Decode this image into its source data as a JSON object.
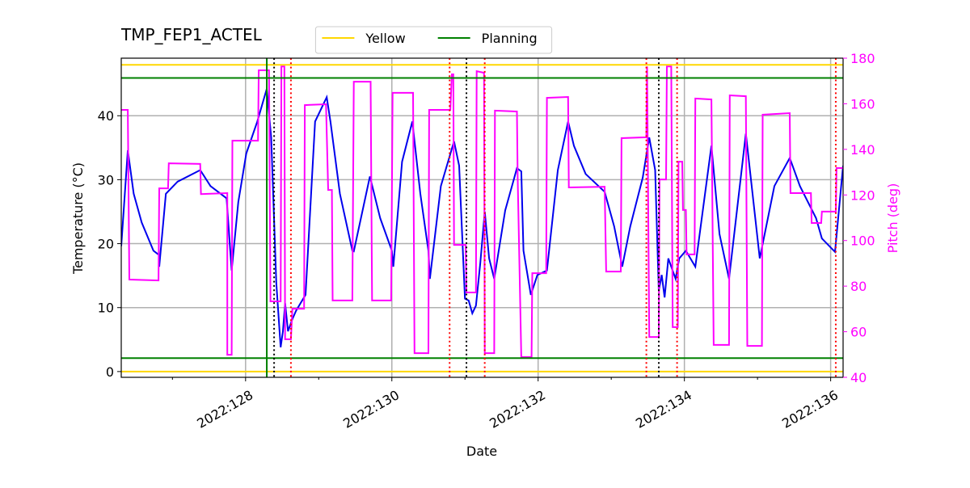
{
  "chart_data": {
    "type": "line",
    "title": "TMP_FEP1_ACTEL",
    "x_label": "Date",
    "y_label": "Temperature (°C)",
    "y2_label": "Pitch (deg)",
    "y2_color": "#ff00ff",
    "xlim": [
      126.3,
      136.17
    ],
    "ylim": [
      -0.9,
      49
    ],
    "y2lim": [
      40,
      180
    ],
    "xticks": [
      {
        "value": 128,
        "label": "2022:128"
      },
      {
        "value": 130,
        "label": "2022:130"
      },
      {
        "value": 132,
        "label": "2022:132"
      },
      {
        "value": 134,
        "label": "2022:134"
      },
      {
        "value": 136,
        "label": "2022:136"
      }
    ],
    "xminorticks": [
      127,
      129,
      131,
      133,
      135
    ],
    "yticks": [
      0,
      10,
      20,
      30,
      40
    ],
    "y2ticks": [
      40,
      60,
      80,
      100,
      120,
      140,
      160,
      180
    ],
    "grid": true,
    "legend": "upper center",
    "series": [
      {
        "color": "#0000ee",
        "x": [
          126.3,
          126.39,
          126.47,
          126.58,
          126.74,
          126.82,
          126.82,
          126.91,
          127.07,
          127.38,
          127.52,
          127.74,
          127.81,
          127.9,
          128.01,
          128.16,
          128.29,
          128.35,
          128.42,
          128.48,
          128.51,
          128.54,
          128.58,
          128.64,
          128.69,
          128.82,
          128.95,
          129.11,
          129.16,
          129.29,
          129.46,
          129.48,
          129.7,
          129.84,
          130.0,
          130.02,
          130.14,
          130.28,
          130.39,
          130.5,
          130.52,
          130.67,
          130.85,
          130.92,
          131.0,
          131.05,
          131.1,
          131.15,
          131.21,
          131.27,
          131.33,
          131.4,
          131.55,
          131.71,
          131.77,
          131.8,
          131.9,
          131.99,
          132.12,
          132.27,
          132.41,
          132.49,
          132.65,
          132.91,
          133.04,
          133.15,
          133.26,
          133.43,
          133.52,
          133.6,
          133.65,
          133.69,
          133.73,
          133.78,
          133.82,
          133.88,
          133.93,
          134.02,
          134.15,
          134.37,
          134.48,
          134.61,
          134.84,
          135.03,
          135.23,
          135.44,
          135.58,
          135.8,
          135.88,
          136.06,
          136.17
        ],
        "values": [
          19.6,
          34.6,
          27.8,
          23.3,
          18.9,
          18.2,
          16.4,
          27.8,
          29.7,
          31.5,
          29.0,
          27.1,
          15.8,
          26.5,
          34.1,
          39.1,
          44.2,
          36.6,
          13.9,
          3.8,
          6.3,
          10.7,
          6.3,
          8.2,
          9.5,
          12.0,
          39.1,
          42.9,
          39.1,
          27.8,
          18.9,
          18.8,
          30.5,
          24.0,
          18.9,
          16.4,
          32.8,
          39.1,
          27.8,
          18.9,
          14.5,
          29.0,
          36.0,
          32.2,
          11.4,
          11.1,
          9.1,
          10.3,
          17.0,
          25.0,
          17.7,
          14.5,
          25.2,
          31.8,
          31.3,
          18.9,
          12.0,
          15.1,
          15.8,
          31.5,
          39.1,
          35.3,
          30.9,
          28.1,
          22.7,
          16.4,
          22.7,
          30.3,
          36.6,
          31.5,
          12.6,
          15.1,
          11.6,
          17.7,
          16.4,
          14.5,
          17.7,
          18.9,
          16.4,
          35.3,
          21.5,
          14.5,
          37.2,
          17.7,
          29.0,
          33.4,
          29.0,
          24.0,
          20.8,
          18.7,
          32.2
        ]
      },
      {
        "color": "#ff00ff",
        "axis": "y2",
        "x": [
          126.3,
          126.39,
          126.41,
          126.81,
          126.82,
          126.94,
          126.95,
          127.38,
          127.39,
          127.75,
          127.75,
          127.81,
          127.82,
          128.17,
          128.18,
          128.32,
          128.34,
          128.48,
          128.49,
          128.53,
          128.54,
          128.62,
          128.64,
          128.8,
          128.81,
          129.1,
          129.13,
          129.18,
          129.19,
          129.46,
          129.48,
          129.71,
          129.73,
          129.99,
          130.01,
          130.29,
          130.31,
          130.5,
          130.51,
          130.8,
          130.82,
          130.84,
          130.85,
          131.01,
          131.02,
          131.15,
          131.16,
          131.26,
          131.27,
          131.4,
          131.41,
          131.71,
          131.72,
          131.77,
          131.91,
          131.92,
          132.11,
          132.12,
          132.41,
          132.42,
          132.91,
          132.93,
          133.13,
          133.14,
          133.48,
          133.49,
          133.52,
          133.65,
          133.66,
          133.75,
          133.76,
          133.82,
          133.84,
          133.91,
          133.92,
          133.97,
          133.98,
          134.02,
          134.03,
          134.14,
          134.15,
          134.37,
          134.4,
          134.61,
          134.62,
          134.84,
          134.86,
          135.06,
          135.07,
          135.44,
          135.45,
          135.73,
          135.74,
          135.87,
          135.88,
          136.07,
          136.08,
          136.17
        ],
        "values": [
          157.3,
          157.3,
          82.9,
          82.5,
          122.9,
          122.9,
          133.9,
          133.6,
          120.4,
          120.8,
          49.9,
          49.9,
          143.8,
          143.8,
          174.7,
          174.7,
          73.3,
          73.3,
          176.4,
          176.4,
          56.7,
          56.7,
          70.1,
          70.1,
          159.4,
          159.8,
          122.2,
          122.2,
          73.7,
          73.7,
          169.7,
          169.7,
          73.7,
          73.7,
          164.8,
          164.8,
          50.6,
          50.6,
          157.3,
          157.3,
          172.9,
          172.9,
          98.1,
          98.1,
          77.2,
          77.2,
          174.3,
          173.6,
          50.6,
          50.6,
          157.0,
          156.6,
          128.2,
          48.9,
          48.9,
          85.7,
          85.7,
          162.6,
          163.0,
          123.3,
          123.6,
          86.4,
          86.4,
          144.9,
          145.3,
          176.4,
          57.7,
          57.7,
          126.8,
          126.8,
          176.4,
          176.4,
          62.0,
          62.0,
          134.6,
          134.6,
          113.4,
          113.4,
          93.9,
          93.9,
          162.3,
          161.9,
          54.2,
          54.2,
          163.7,
          163.3,
          53.8,
          53.8,
          155.2,
          155.9,
          120.8,
          120.8,
          107.7,
          107.7,
          112.7,
          112.7,
          131.8,
          131.8
        ]
      }
    ],
    "hlines": [
      {
        "name": "Yellow",
        "color": "#ffd700",
        "values": [
          47.95,
          0
        ]
      },
      {
        "name": "Planning",
        "color": "#008000",
        "values": [
          45.9,
          2.1
        ]
      }
    ],
    "vlines": [
      {
        "color": "#008000",
        "style": "solid",
        "values": [
          128.29
        ]
      },
      {
        "color": "#000000",
        "style": "dotted",
        "values": [
          128.39,
          131.02,
          133.65
        ]
      },
      {
        "color": "#ff0000",
        "style": "dotted",
        "values": [
          128.62,
          130.79,
          131.27,
          133.48,
          133.9,
          136.07
        ]
      }
    ]
  }
}
